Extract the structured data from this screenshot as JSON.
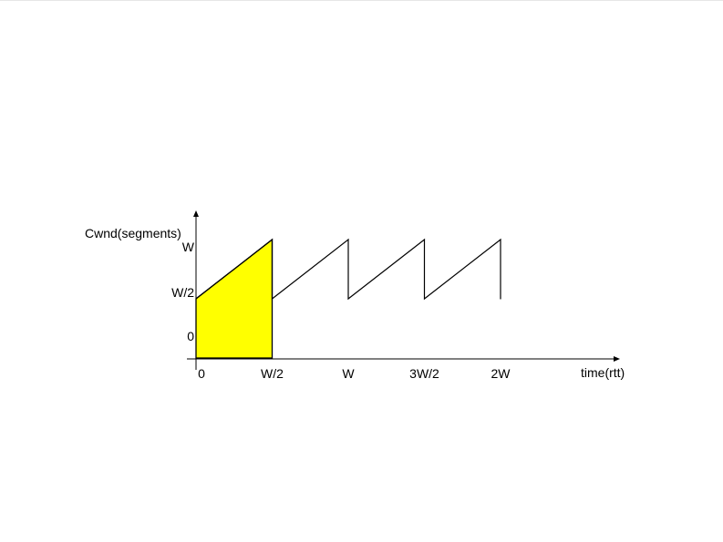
{
  "chart_data": {
    "type": "line",
    "title": "",
    "ylabel": "Cwnd(segments)",
    "xlabel": "time(rtt)",
    "x_ticks": [
      "0",
      "W/2",
      "W",
      "3W/2",
      "2W"
    ],
    "y_ticks": [
      "0",
      "W/2",
      "W"
    ],
    "xlim": [
      0,
      2.75
    ],
    "ylim": [
      0,
      1.1
    ],
    "grid": false,
    "legend": "none",
    "series": [
      {
        "x": [
          0,
          0.5,
          0.5,
          1.0,
          1.0,
          1.5,
          1.5,
          2.0,
          2.0
        ],
        "y": [
          0.5,
          1.0,
          0.5,
          1.0,
          0.5,
          1.0,
          0.5,
          1.0,
          0.5
        ]
      }
    ],
    "shaded_region": {
      "x": [
        0,
        0.5
      ],
      "y_top": [
        0.5,
        1.0
      ],
      "color": "#ffff00"
    },
    "line_color": "#000000"
  }
}
